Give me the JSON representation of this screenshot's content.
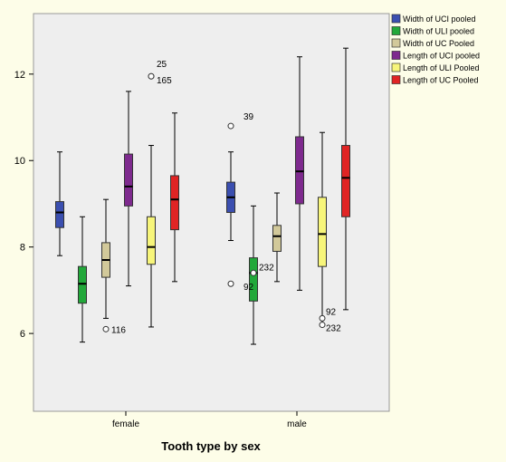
{
  "chart_data": {
    "type": "boxplot",
    "xlabel": "Tooth type by sex",
    "ylabel": "",
    "ylim": [
      4.2,
      13.4
    ],
    "yticks": [
      6,
      8,
      10,
      12
    ],
    "grid": false,
    "legend_position": "top-right",
    "categories": [
      "female",
      "male"
    ],
    "series": [
      {
        "name": "Width of UCI pooled",
        "color": "#3b4fb0",
        "boxes": [
          {
            "category": "female",
            "whisker_low": 7.8,
            "q1": 8.45,
            "median": 8.8,
            "q3": 9.05,
            "whisker_high": 10.2,
            "outliers": []
          },
          {
            "category": "male",
            "whisker_low": 8.15,
            "q1": 8.8,
            "median": 9.15,
            "q3": 9.5,
            "whisker_high": 10.2,
            "outliers": [
              {
                "value": 10.8,
                "label": "39"
              },
              {
                "value": 7.15,
                "label": "92"
              }
            ]
          }
        ]
      },
      {
        "name": "Width of ULI pooled",
        "color": "#22a83a",
        "boxes": [
          {
            "category": "female",
            "whisker_low": 5.8,
            "q1": 6.7,
            "median": 7.15,
            "q3": 7.55,
            "whisker_high": 8.7,
            "outliers": []
          },
          {
            "category": "male",
            "whisker_low": 5.75,
            "q1": 6.75,
            "median": 7.4,
            "q3": 7.75,
            "whisker_high": 8.95,
            "outliers": [
              {
                "value": 7.4,
                "label": "232"
              }
            ]
          }
        ]
      },
      {
        "name": "Width of UC Pooled",
        "color": "#d2c99a",
        "boxes": [
          {
            "category": "female",
            "whisker_low": 6.35,
            "q1": 7.3,
            "median": 7.7,
            "q3": 8.1,
            "whisker_high": 9.1,
            "outliers": [
              {
                "value": 6.1,
                "label": "116"
              }
            ]
          },
          {
            "category": "male",
            "whisker_low": 7.2,
            "q1": 7.9,
            "median": 8.25,
            "q3": 8.5,
            "whisker_high": 9.25,
            "outliers": []
          }
        ]
      },
      {
        "name": "Length of UCI pooled",
        "color": "#7e2a8e",
        "boxes": [
          {
            "category": "female",
            "whisker_low": 7.1,
            "q1": 8.95,
            "median": 9.4,
            "q3": 10.15,
            "whisker_high": 11.6,
            "outliers": []
          },
          {
            "category": "male",
            "whisker_low": 7.0,
            "q1": 9.0,
            "median": 9.75,
            "q3": 10.55,
            "whisker_high": 12.4,
            "outliers": []
          }
        ]
      },
      {
        "name": "Length of ULI Pooled",
        "color": "#f7f57a",
        "boxes": [
          {
            "category": "female",
            "whisker_low": 6.15,
            "q1": 7.6,
            "median": 8.0,
            "q3": 8.7,
            "whisker_high": 10.35,
            "outliers": [
              {
                "value": 11.95,
                "label": "25"
              },
              {
                "value": 11.95,
                "label": "165"
              }
            ]
          },
          {
            "category": "male",
            "whisker_low": 6.2,
            "q1": 7.55,
            "median": 8.3,
            "q3": 9.15,
            "whisker_high": 10.65,
            "outliers": [
              {
                "value": 6.35,
                "label": "92"
              },
              {
                "value": 6.2,
                "label": "232"
              }
            ]
          }
        ]
      },
      {
        "name": "Length of UC Pooled",
        "color": "#e02424",
        "boxes": [
          {
            "category": "female",
            "whisker_low": 7.2,
            "q1": 8.4,
            "median": 9.1,
            "q3": 9.65,
            "whisker_high": 11.1,
            "outliers": []
          },
          {
            "category": "male",
            "whisker_low": 6.55,
            "q1": 8.7,
            "median": 9.6,
            "q3": 10.35,
            "whisker_high": 12.6,
            "outliers": []
          }
        ]
      }
    ]
  }
}
